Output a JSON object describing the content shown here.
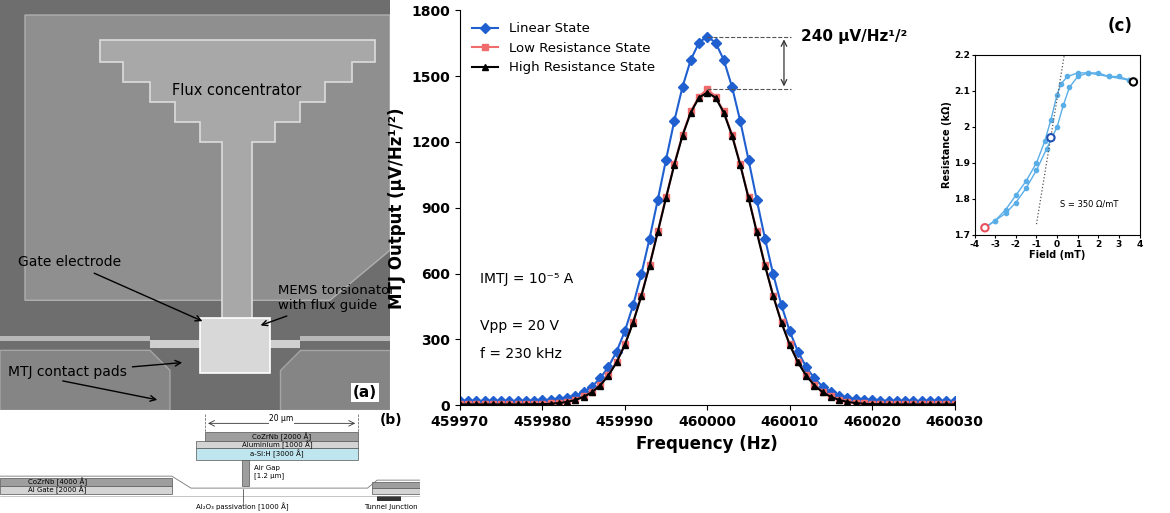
{
  "chart_data": [
    {
      "type": "line",
      "x_label": "Frequency (Hz)",
      "y_label": "MTJ Output (µV/Hz¹/²)",
      "x": [
        459970,
        459971,
        459972,
        459973,
        459974,
        459975,
        459976,
        459977,
        459978,
        459979,
        459980,
        459981,
        459982,
        459983,
        459984,
        459985,
        459986,
        459987,
        459988,
        459989,
        459990,
        459991,
        459992,
        459993,
        459994,
        459995,
        459996,
        459997,
        459998,
        459999,
        460000,
        460001,
        460002,
        460003,
        460004,
        460005,
        460006,
        460007,
        460008,
        460009,
        460010,
        460011,
        460012,
        460013,
        460014,
        460015,
        460016,
        460017,
        460018,
        460019,
        460020,
        460021,
        460022,
        460023,
        460024,
        460025,
        460026,
        460027,
        460028,
        460029,
        460030
      ],
      "series": [
        {
          "name": "Linear State",
          "color": "#1f5fd0",
          "marker": "diamond",
          "line_style": "solid",
          "values": [
            20,
            20,
            20,
            20,
            20,
            20,
            20,
            20,
            20,
            21,
            22,
            24,
            28,
            34,
            44,
            60,
            85,
            122,
            174,
            244,
            337,
            455,
            596,
            759,
            936,
            1119,
            1295,
            1451,
            1574,
            1653,
            1680,
            1653,
            1574,
            1451,
            1295,
            1119,
            936,
            759,
            596,
            455,
            337,
            244,
            174,
            122,
            85,
            60,
            44,
            34,
            28,
            24,
            22,
            21,
            20,
            20,
            20,
            20,
            20,
            20,
            20,
            20,
            20
          ]
        },
        {
          "name": "Low Resistance State",
          "color": "#f06c6c",
          "marker": "square",
          "line_style": "solid",
          "values": [
            5,
            5,
            5,
            5,
            5,
            5,
            5,
            5,
            5,
            6,
            7,
            9,
            12,
            17,
            26,
            40,
            61,
            92,
            137,
            197,
            277,
            378,
            499,
            639,
            792,
            948,
            1099,
            1233,
            1339,
            1407,
            1440,
            1407,
            1339,
            1233,
            1099,
            948,
            792,
            639,
            499,
            378,
            277,
            197,
            137,
            92,
            61,
            40,
            26,
            17,
            12,
            9,
            7,
            6,
            5,
            5,
            5,
            5,
            5,
            5,
            5,
            5,
            5
          ]
        },
        {
          "name": "High Resistance State",
          "color": "#000000",
          "marker": "triangle",
          "line_style": "solid",
          "values": [
            4,
            4,
            4,
            4,
            4,
            4,
            4,
            4,
            4,
            5,
            5,
            7,
            10,
            15,
            24,
            38,
            59,
            90,
            135,
            195,
            275,
            376,
            497,
            636,
            789,
            945,
            1095,
            1229,
            1334,
            1402,
            1425,
            1402,
            1334,
            1229,
            1095,
            945,
            789,
            636,
            497,
            376,
            275,
            195,
            135,
            90,
            59,
            38,
            24,
            15,
            10,
            7,
            5,
            5,
            4,
            4,
            4,
            4,
            4,
            4,
            4,
            4,
            4
          ]
        }
      ],
      "xlim": [
        459970,
        460030
      ],
      "xticks": [
        459970,
        459980,
        459990,
        460000,
        460010,
        460020,
        460030
      ],
      "ylim": [
        0,
        1800
      ],
      "yticks": [
        0,
        300,
        600,
        900,
        1200,
        1500,
        1800
      ],
      "legend": "upper left",
      "annotations": {
        "panel": "(c)",
        "difference": "240 µV/Hz¹/²",
        "conditions": [
          "IMTJ = 10⁻⁵ A",
          "Vpp = 20 V",
          "f = 230 kHz"
        ]
      }
    },
    {
      "type": "line",
      "x_label": "Field (mT)",
      "y_label": "Resistance (kΩ)",
      "series": [
        {
          "color": "#5aaee8",
          "marker": "circle",
          "line_style": "solid",
          "x": [
            -3.5,
            -3,
            -2.5,
            -2,
            -1.5,
            -1,
            -0.5,
            0,
            0.3,
            0.6,
            1,
            1.5,
            2,
            2.5,
            3,
            3.5
          ],
          "values": [
            1.72,
            1.74,
            1.76,
            1.79,
            1.83,
            1.88,
            1.94,
            2.0,
            2.06,
            2.11,
            2.14,
            2.15,
            2.15,
            2.14,
            2.14,
            2.13
          ]
        },
        {
          "color": "#5aaee8",
          "marker": "circle",
          "line_style": "solid",
          "x": [
            3.5,
            2.5,
            1.5,
            1,
            0.5,
            0.2,
            0,
            -0.3,
            -0.6,
            -1,
            -1.5,
            -2,
            -2.5,
            -3,
            -3.5
          ],
          "values": [
            2.13,
            2.14,
            2.15,
            2.15,
            2.14,
            2.12,
            2.09,
            2.02,
            1.96,
            1.9,
            1.85,
            1.81,
            1.77,
            1.74,
            1.72
          ]
        }
      ],
      "marked_points": {
        "x": [
          -3.5,
          -0.3,
          3.7
        ],
        "values": [
          1.72,
          1.97,
          2.125
        ],
        "colors": [
          "#e8505b",
          "#1f4fb0",
          "#000000"
        ]
      },
      "slope_line": {
        "x": [
          -1.0,
          0.35
        ],
        "values": [
          1.73,
          2.2
        ],
        "line_style": "dotted"
      },
      "xlim": [
        -4,
        4
      ],
      "xticks": [
        -4,
        -3,
        -2,
        -1,
        0,
        1,
        2,
        3,
        4
      ],
      "ylim": [
        1.7,
        2.2
      ],
      "yticks": [
        1.7,
        1.8,
        1.9,
        2,
        2.1,
        2.2
      ],
      "annotations": {
        "slope": "S = 350 Ω/mT"
      }
    }
  ],
  "panel_a": {
    "label": "(a)",
    "texts": {
      "flux_concentrator": "Flux concentrator",
      "gate_electrode": "Gate electrode",
      "torsionator": "MEMS torsionator\nwith flux guide",
      "contact_pads": "MTJ contact pads"
    }
  },
  "panel_b": {
    "label": "(b)",
    "width": "20 µm",
    "layers": {
      "top_cozrnb": "CoZrNb [2000 Å]",
      "aluminium": "Aluminium [1000 Å]",
      "asi": "a-Si:H [3000 Å]",
      "air_gap": "Air Gap\n[1.2 µm]",
      "bottom_cozrnb": "CoZrNb [4000 Å]",
      "gate": "Al Gate [2000 Å]",
      "passivation": "Al₂O₃ passivation [1000 Å]",
      "junction": "Tunnel Junction"
    }
  }
}
